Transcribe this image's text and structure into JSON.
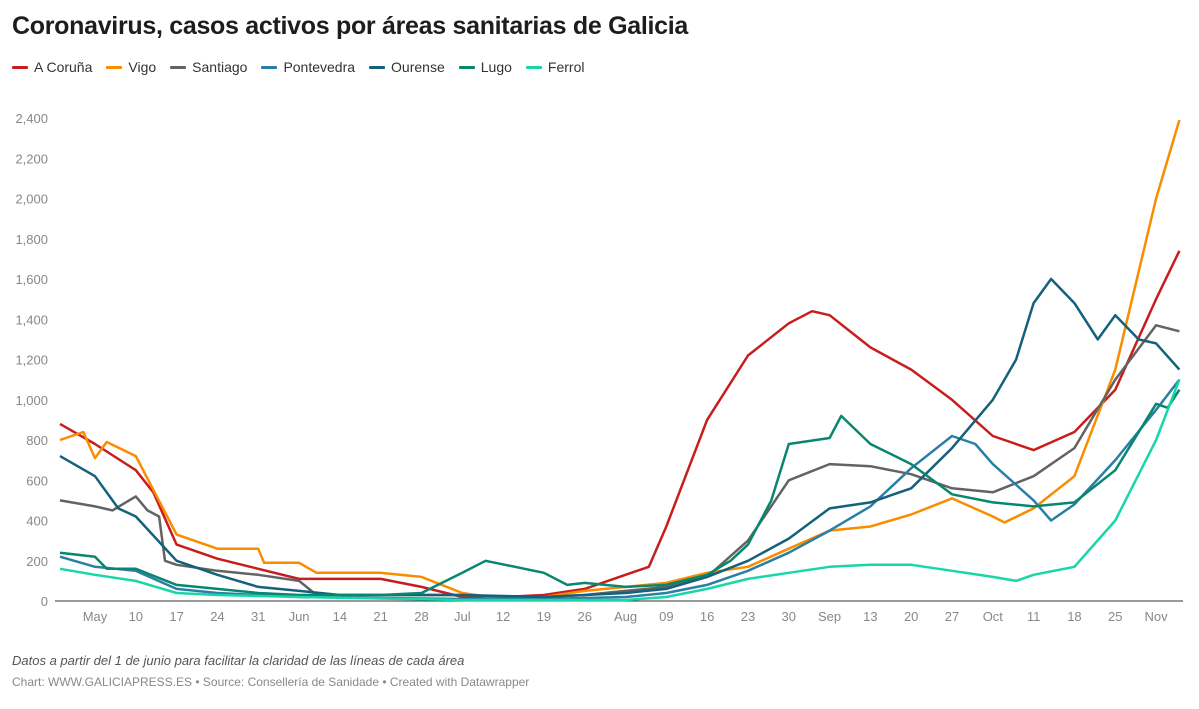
{
  "chart_data": {
    "type": "line",
    "title": "Coronavirus, casos activos por áreas sanitarias de Galicia",
    "xlabel": "",
    "ylabel": "",
    "ylim": [
      0,
      2400
    ],
    "yticks": [
      "0",
      "200",
      "400",
      "600",
      "800",
      "1,000",
      "1,200",
      "1,400",
      "1,600",
      "1,800",
      "2,000",
      "2,200",
      "2,400"
    ],
    "xticks": [
      {
        "date": "05-03",
        "label": "May"
      },
      {
        "date": "05-10",
        "label": "10"
      },
      {
        "date": "05-17",
        "label": "17"
      },
      {
        "date": "05-24",
        "label": "24"
      },
      {
        "date": "05-31",
        "label": "31"
      },
      {
        "date": "06-07",
        "label": "Jun"
      },
      {
        "date": "06-14",
        "label": "14"
      },
      {
        "date": "06-21",
        "label": "21"
      },
      {
        "date": "06-28",
        "label": "28"
      },
      {
        "date": "07-05",
        "label": "Jul"
      },
      {
        "date": "07-12",
        "label": "12"
      },
      {
        "date": "07-19",
        "label": "19"
      },
      {
        "date": "07-26",
        "label": "26"
      },
      {
        "date": "08-02",
        "label": "Aug"
      },
      {
        "date": "08-09",
        "label": "09"
      },
      {
        "date": "08-16",
        "label": "16"
      },
      {
        "date": "08-23",
        "label": "23"
      },
      {
        "date": "08-30",
        "label": "30"
      },
      {
        "date": "09-06",
        "label": "Sep"
      },
      {
        "date": "09-13",
        "label": "13"
      },
      {
        "date": "09-20",
        "label": "20"
      },
      {
        "date": "09-27",
        "label": "27"
      },
      {
        "date": "10-04",
        "label": "Oct"
      },
      {
        "date": "10-11",
        "label": "11"
      },
      {
        "date": "10-18",
        "label": "18"
      },
      {
        "date": "10-25",
        "label": "25"
      },
      {
        "date": "11-01",
        "label": "Nov"
      }
    ],
    "grid": false,
    "legend": "top-left",
    "series": [
      {
        "name": "A Coruña",
        "color": "#c71e1d",
        "points": [
          [
            "04-27",
            880
          ],
          [
            "05-03",
            780
          ],
          [
            "05-10",
            650
          ],
          [
            "05-13",
            540
          ],
          [
            "05-17",
            280
          ],
          [
            "05-24",
            210
          ],
          [
            "05-31",
            160
          ],
          [
            "06-07",
            110
          ],
          [
            "06-14",
            110
          ],
          [
            "06-21",
            110
          ],
          [
            "06-28",
            70
          ],
          [
            "07-05",
            20
          ],
          [
            "07-12",
            20
          ],
          [
            "07-19",
            30
          ],
          [
            "07-26",
            60
          ],
          [
            "08-02",
            130
          ],
          [
            "08-06",
            170
          ],
          [
            "08-09",
            370
          ],
          [
            "08-16",
            900
          ],
          [
            "08-23",
            1220
          ],
          [
            "08-30",
            1380
          ],
          [
            "09-03",
            1440
          ],
          [
            "09-06",
            1420
          ],
          [
            "09-13",
            1260
          ],
          [
            "09-20",
            1150
          ],
          [
            "09-27",
            1000
          ],
          [
            "10-04",
            820
          ],
          [
            "10-11",
            750
          ],
          [
            "10-18",
            840
          ],
          [
            "10-25",
            1050
          ],
          [
            "11-01",
            1500
          ],
          [
            "11-05",
            1740
          ]
        ]
      },
      {
        "name": "Vigo",
        "color": "#fa8c00",
        "points": [
          [
            "04-27",
            800
          ],
          [
            "05-01",
            840
          ],
          [
            "05-03",
            710
          ],
          [
            "05-05",
            790
          ],
          [
            "05-10",
            720
          ],
          [
            "05-17",
            330
          ],
          [
            "05-24",
            260
          ],
          [
            "05-31",
            260
          ],
          [
            "06-01",
            190
          ],
          [
            "06-07",
            190
          ],
          [
            "06-10",
            140
          ],
          [
            "06-14",
            140
          ],
          [
            "06-21",
            140
          ],
          [
            "06-28",
            120
          ],
          [
            "07-05",
            40
          ],
          [
            "07-12",
            10
          ],
          [
            "07-19",
            20
          ],
          [
            "07-26",
            50
          ],
          [
            "08-02",
            70
          ],
          [
            "08-09",
            90
          ],
          [
            "08-16",
            140
          ],
          [
            "08-23",
            170
          ],
          [
            "08-30",
            260
          ],
          [
            "09-06",
            350
          ],
          [
            "09-13",
            370
          ],
          [
            "09-20",
            430
          ],
          [
            "09-27",
            510
          ],
          [
            "10-04",
            420
          ],
          [
            "10-06",
            390
          ],
          [
            "10-11",
            460
          ],
          [
            "10-18",
            620
          ],
          [
            "10-25",
            1150
          ],
          [
            "11-01",
            2000
          ],
          [
            "11-05",
            2390
          ]
        ]
      },
      {
        "name": "Santiago",
        "color": "#636363",
        "points": [
          [
            "04-27",
            500
          ],
          [
            "05-03",
            470
          ],
          [
            "05-06",
            450
          ],
          [
            "05-10",
            520
          ],
          [
            "05-12",
            450
          ],
          [
            "05-14",
            420
          ],
          [
            "05-15",
            200
          ],
          [
            "05-17",
            180
          ],
          [
            "05-24",
            150
          ],
          [
            "05-31",
            130
          ],
          [
            "06-07",
            100
          ],
          [
            "06-10",
            30
          ],
          [
            "06-14",
            30
          ],
          [
            "06-21",
            30
          ],
          [
            "07-05",
            30
          ],
          [
            "07-12",
            20
          ],
          [
            "07-19",
            20
          ],
          [
            "07-26",
            30
          ],
          [
            "08-02",
            50
          ],
          [
            "08-09",
            70
          ],
          [
            "08-16",
            120
          ],
          [
            "08-23",
            300
          ],
          [
            "08-30",
            600
          ],
          [
            "09-06",
            680
          ],
          [
            "09-13",
            670
          ],
          [
            "09-20",
            630
          ],
          [
            "09-27",
            560
          ],
          [
            "10-04",
            540
          ],
          [
            "10-11",
            620
          ],
          [
            "10-18",
            760
          ],
          [
            "10-25",
            1100
          ],
          [
            "11-01",
            1370
          ],
          [
            "11-05",
            1340
          ]
        ]
      },
      {
        "name": "Pontevedra",
        "color": "#2a7fa6",
        "points": [
          [
            "04-27",
            220
          ],
          [
            "05-03",
            170
          ],
          [
            "05-10",
            150
          ],
          [
            "05-17",
            60
          ],
          [
            "05-24",
            40
          ],
          [
            "05-31",
            30
          ],
          [
            "06-07",
            20
          ],
          [
            "07-05",
            10
          ],
          [
            "07-19",
            10
          ],
          [
            "08-02",
            20
          ],
          [
            "08-09",
            40
          ],
          [
            "08-16",
            80
          ],
          [
            "08-23",
            150
          ],
          [
            "08-30",
            240
          ],
          [
            "09-06",
            350
          ],
          [
            "09-13",
            470
          ],
          [
            "09-20",
            660
          ],
          [
            "09-27",
            820
          ],
          [
            "10-01",
            780
          ],
          [
            "10-04",
            680
          ],
          [
            "10-11",
            500
          ],
          [
            "10-14",
            400
          ],
          [
            "10-18",
            480
          ],
          [
            "10-25",
            700
          ],
          [
            "11-01",
            950
          ],
          [
            "11-05",
            1100
          ]
        ]
      },
      {
        "name": "Ourense",
        "color": "#15607a",
        "points": [
          [
            "04-27",
            720
          ],
          [
            "05-03",
            620
          ],
          [
            "05-07",
            460
          ],
          [
            "05-10",
            420
          ],
          [
            "05-17",
            200
          ],
          [
            "05-24",
            130
          ],
          [
            "05-31",
            70
          ],
          [
            "06-07",
            50
          ],
          [
            "06-14",
            30
          ],
          [
            "07-05",
            30
          ],
          [
            "07-19",
            20
          ],
          [
            "08-02",
            40
          ],
          [
            "08-09",
            60
          ],
          [
            "08-16",
            120
          ],
          [
            "08-23",
            200
          ],
          [
            "08-30",
            310
          ],
          [
            "09-06",
            460
          ],
          [
            "09-13",
            490
          ],
          [
            "09-20",
            560
          ],
          [
            "09-27",
            760
          ],
          [
            "10-04",
            1000
          ],
          [
            "10-08",
            1200
          ],
          [
            "10-11",
            1480
          ],
          [
            "10-14",
            1600
          ],
          [
            "10-18",
            1480
          ],
          [
            "10-22",
            1300
          ],
          [
            "10-25",
            1420
          ],
          [
            "10-29",
            1300
          ],
          [
            "11-01",
            1280
          ],
          [
            "11-05",
            1150
          ]
        ]
      },
      {
        "name": "Lugo",
        "color": "#09866f",
        "points": [
          [
            "04-27",
            240
          ],
          [
            "05-03",
            220
          ],
          [
            "05-05",
            160
          ],
          [
            "05-10",
            160
          ],
          [
            "05-17",
            80
          ],
          [
            "05-24",
            60
          ],
          [
            "05-31",
            40
          ],
          [
            "06-07",
            30
          ],
          [
            "06-21",
            30
          ],
          [
            "06-28",
            40
          ],
          [
            "07-05",
            140
          ],
          [
            "07-09",
            200
          ],
          [
            "07-19",
            140
          ],
          [
            "07-23",
            80
          ],
          [
            "07-26",
            90
          ],
          [
            "08-02",
            70
          ],
          [
            "08-09",
            80
          ],
          [
            "08-16",
            130
          ],
          [
            "08-20",
            200
          ],
          [
            "08-23",
            280
          ],
          [
            "08-27",
            500
          ],
          [
            "08-30",
            780
          ],
          [
            "09-06",
            810
          ],
          [
            "09-08",
            920
          ],
          [
            "09-13",
            780
          ],
          [
            "09-20",
            680
          ],
          [
            "09-27",
            530
          ],
          [
            "10-04",
            490
          ],
          [
            "10-11",
            470
          ],
          [
            "10-18",
            490
          ],
          [
            "10-25",
            650
          ],
          [
            "11-01",
            980
          ],
          [
            "11-03",
            960
          ],
          [
            "11-05",
            1050
          ]
        ]
      },
      {
        "name": "Ferrol",
        "color": "#18d6a7",
        "points": [
          [
            "04-27",
            160
          ],
          [
            "05-03",
            130
          ],
          [
            "05-10",
            100
          ],
          [
            "05-17",
            40
          ],
          [
            "05-24",
            30
          ],
          [
            "06-07",
            20
          ],
          [
            "07-05",
            5
          ],
          [
            "08-02",
            5
          ],
          [
            "08-09",
            20
          ],
          [
            "08-16",
            60
          ],
          [
            "08-23",
            110
          ],
          [
            "08-30",
            140
          ],
          [
            "09-06",
            170
          ],
          [
            "09-13",
            180
          ],
          [
            "09-20",
            180
          ],
          [
            "09-27",
            150
          ],
          [
            "10-04",
            120
          ],
          [
            "10-08",
            100
          ],
          [
            "10-11",
            130
          ],
          [
            "10-18",
            170
          ],
          [
            "10-25",
            400
          ],
          [
            "11-01",
            800
          ],
          [
            "11-05",
            1100
          ]
        ]
      }
    ]
  },
  "footer": {
    "note": "Datos a partir del 1 de junio para facilitar la claridad de las líneas de cada área",
    "credit": "Chart: WWW.GALICIAPRESS.ES • Source: Consellería de Sanidade • Created with Datawrapper"
  }
}
